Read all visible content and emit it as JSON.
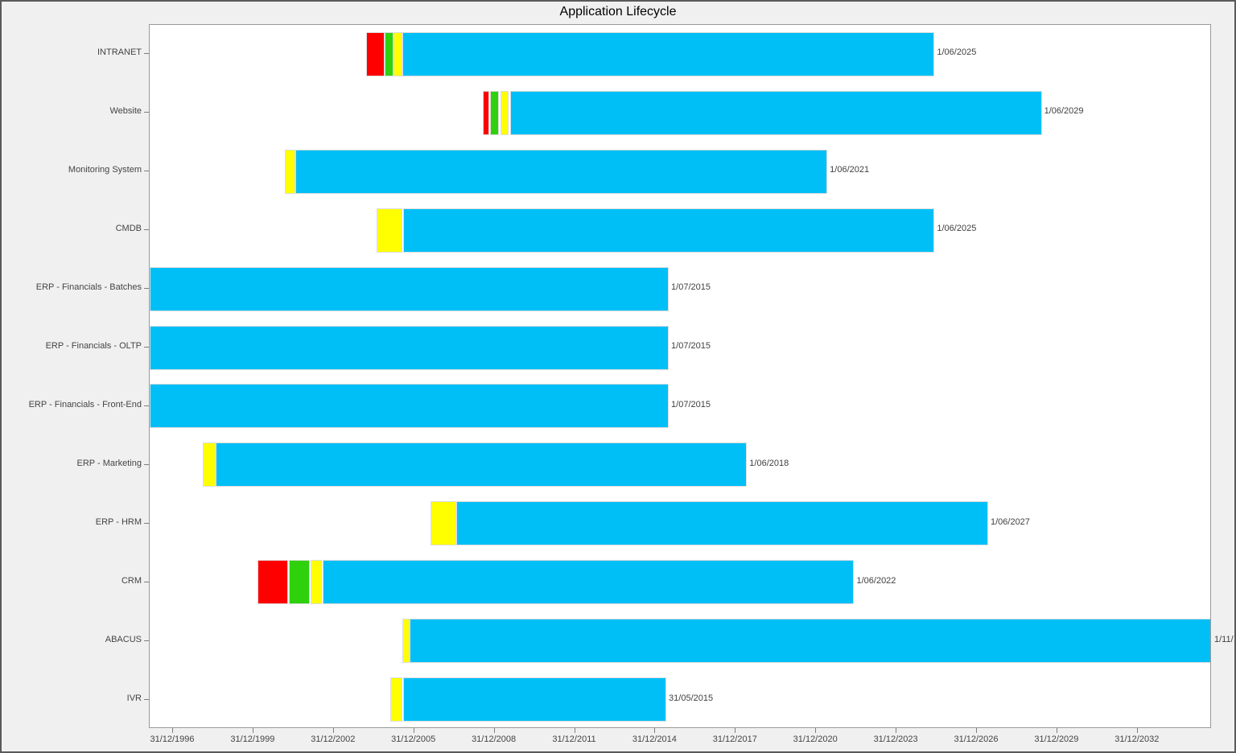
{
  "title": "Application Lifecycle",
  "colors": {
    "figure_background": "#F0F0F0",
    "plot_background": "#FFFFFF",
    "axis_text": "#444444",
    "border": "#5A5A5A"
  },
  "chart_data": {
    "type": "bar",
    "subtype": "gantt-lifecycle-timeline",
    "title": "Application Lifecycle",
    "grid": "off",
    "legend": "none",
    "palette": {
      "red": "#FF0000",
      "green": "#2FD10C",
      "yellow": "#FFFF00",
      "blue": "#00BFF7"
    },
    "x_axis": {
      "unit": "date (decimal years, 31/12/1996 = 1997.0)",
      "tick_years": [
        1997,
        2000,
        2003,
        2006,
        2009,
        2012,
        2015,
        2018,
        2021,
        2024,
        2027,
        2030,
        2033
      ],
      "tick_labels": [
        "31/12/1996",
        "31/12/1999",
        "31/12/2002",
        "31/12/2005",
        "31/12/2008",
        "31/12/2011",
        "31/12/2014",
        "31/12/2017",
        "31/12/2020",
        "31/12/2023",
        "31/12/2026",
        "31/12/2029",
        "31/12/2032"
      ],
      "domain_years": [
        1996.13,
        2035.8
      ]
    },
    "rows": [
      {
        "name": "INTRANET",
        "end_label": "1/06/2025",
        "segments": [
          {
            "phase": "red",
            "start": 2004.2,
            "end": 2004.9
          },
          {
            "phase": "green",
            "start": 2004.9,
            "end": 2005.23
          },
          {
            "phase": "yellow",
            "start": 2005.23,
            "end": 2005.56
          },
          {
            "phase": "blue",
            "start": 2005.56,
            "end": 2025.42
          }
        ]
      },
      {
        "name": "Website",
        "end_label": "1/06/2029",
        "segments": [
          {
            "phase": "red",
            "start": 2008.56,
            "end": 2008.8
          },
          {
            "phase": "green",
            "start": 2008.83,
            "end": 2009.16
          },
          {
            "phase": "yellow",
            "start": 2009.22,
            "end": 2009.52
          },
          {
            "phase": "blue",
            "start": 2009.58,
            "end": 2029.42
          }
        ]
      },
      {
        "name": "Monitoring System",
        "end_label": "1/06/2021",
        "segments": [
          {
            "phase": "yellow",
            "start": 2001.17,
            "end": 2001.56
          },
          {
            "phase": "blue",
            "start": 2001.56,
            "end": 2021.42
          }
        ]
      },
      {
        "name": "CMDB",
        "end_label": "1/06/2025",
        "segments": [
          {
            "phase": "yellow",
            "start": 2004.6,
            "end": 2005.56
          },
          {
            "phase": "blue",
            "start": 2005.59,
            "end": 2025.42
          }
        ]
      },
      {
        "name": "ERP - Financials - Batches",
        "end_label": "1/07/2015",
        "segments": [
          {
            "phase": "blue",
            "start": 1996.13,
            "end": 2015.5
          }
        ]
      },
      {
        "name": "ERP - Financials - OLTP",
        "end_label": "1/07/2015",
        "segments": [
          {
            "phase": "blue",
            "start": 1996.13,
            "end": 2015.5
          }
        ]
      },
      {
        "name": "ERP - Financials - Front-End",
        "end_label": "1/07/2015",
        "segments": [
          {
            "phase": "blue",
            "start": 1996.13,
            "end": 2015.5
          }
        ]
      },
      {
        "name": "ERP - Marketing",
        "end_label": "1/06/2018",
        "segments": [
          {
            "phase": "yellow",
            "start": 1998.11,
            "end": 1998.59
          },
          {
            "phase": "blue",
            "start": 1998.59,
            "end": 2018.42
          }
        ]
      },
      {
        "name": "ERP - HRM",
        "end_label": "1/06/2027",
        "segments": [
          {
            "phase": "yellow",
            "start": 2006.61,
            "end": 2007.57
          },
          {
            "phase": "blue",
            "start": 2007.57,
            "end": 2027.42
          }
        ]
      },
      {
        "name": "CRM",
        "end_label": "1/06/2022",
        "segments": [
          {
            "phase": "red",
            "start": 2000.15,
            "end": 2001.29
          },
          {
            "phase": "green",
            "start": 2001.32,
            "end": 2002.11
          },
          {
            "phase": "yellow",
            "start": 2002.14,
            "end": 2002.56
          },
          {
            "phase": "blue",
            "start": 2002.59,
            "end": 2022.42
          }
        ]
      },
      {
        "name": "ABACUS",
        "end_label": "1/11/",
        "segments": [
          {
            "phase": "yellow",
            "start": 2005.56,
            "end": 2005.83
          },
          {
            "phase": "blue",
            "start": 2005.83,
            "end": 2035.8
          }
        ]
      },
      {
        "name": "IVR",
        "end_label": "31/05/2015",
        "segments": [
          {
            "phase": "yellow",
            "start": 2005.11,
            "end": 2005.56
          },
          {
            "phase": "blue",
            "start": 2005.59,
            "end": 2015.41
          }
        ]
      }
    ]
  }
}
